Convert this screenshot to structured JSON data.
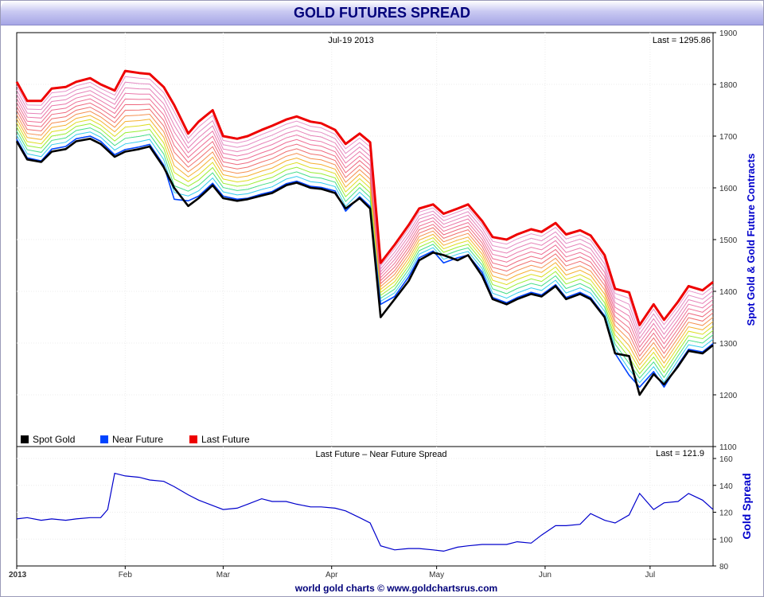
{
  "title": "GOLD FUTURES SPREAD",
  "footer": "world gold charts © www.goldchartsrus.com",
  "colors": {
    "spot": "#000000",
    "near": "#0044ff",
    "last": "#ee0000",
    "spread": "#0000cc",
    "accent": "#0000cc"
  },
  "chart_data": [
    {
      "type": "line",
      "header_date": "Jul-19  2013",
      "header_last": "Last = 1295.86",
      "ylabel": "Spot Gold & Gold Future Contracts",
      "ylim": [
        1100,
        1900
      ],
      "yticks": [
        1100,
        1200,
        1300,
        1400,
        1500,
        1600,
        1700,
        1800,
        1900
      ],
      "xlim": [
        "2013-01-01",
        "2013-07-19"
      ],
      "xticks": [
        {
          "label": "2013",
          "date": "2013-01-01"
        },
        {
          "label": "Feb",
          "date": "2013-02-01"
        },
        {
          "label": "Mar",
          "date": "2013-03-01"
        },
        {
          "label": "Apr",
          "date": "2013-04-01"
        },
        {
          "label": "May",
          "date": "2013-05-01"
        },
        {
          "label": "Jun",
          "date": "2013-06-01"
        },
        {
          "label": "Jul",
          "date": "2013-07-01"
        }
      ],
      "grid": true,
      "legend_position": "bottom-left",
      "legend": [
        {
          "label": "Spot Gold",
          "color": "#000000"
        },
        {
          "label": "Near Future",
          "color": "#0044ff"
        },
        {
          "label": "Last Future",
          "color": "#ee0000"
        }
      ],
      "series": [
        {
          "name": "Spot Gold",
          "color": "#000000",
          "x": [
            "2013-01-01",
            "2013-01-04",
            "2013-01-08",
            "2013-01-11",
            "2013-01-15",
            "2013-01-18",
            "2013-01-22",
            "2013-01-25",
            "2013-01-29",
            "2013-02-01",
            "2013-02-05",
            "2013-02-08",
            "2013-02-12",
            "2013-02-15",
            "2013-02-19",
            "2013-02-22",
            "2013-02-26",
            "2013-03-01",
            "2013-03-05",
            "2013-03-08",
            "2013-03-12",
            "2013-03-15",
            "2013-03-19",
            "2013-03-22",
            "2013-03-26",
            "2013-03-29",
            "2013-04-02",
            "2013-04-05",
            "2013-04-09",
            "2013-04-12",
            "2013-04-15",
            "2013-04-19",
            "2013-04-23",
            "2013-04-26",
            "2013-04-30",
            "2013-05-03",
            "2013-05-07",
            "2013-05-10",
            "2013-05-14",
            "2013-05-17",
            "2013-05-21",
            "2013-05-24",
            "2013-05-28",
            "2013-05-31",
            "2013-06-04",
            "2013-06-07",
            "2013-06-11",
            "2013-06-14",
            "2013-06-18",
            "2013-06-21",
            "2013-06-25",
            "2013-06-28",
            "2013-07-02",
            "2013-07-05",
            "2013-07-09",
            "2013-07-12",
            "2013-07-16",
            "2013-07-19"
          ],
          "values": [
            1690,
            1655,
            1650,
            1670,
            1675,
            1690,
            1695,
            1685,
            1660,
            1670,
            1675,
            1680,
            1640,
            1600,
            1565,
            1580,
            1605,
            1580,
            1575,
            1578,
            1585,
            1590,
            1605,
            1610,
            1600,
            1598,
            1590,
            1560,
            1580,
            1560,
            1350,
            1385,
            1420,
            1460,
            1475,
            1470,
            1460,
            1470,
            1430,
            1385,
            1375,
            1385,
            1395,
            1390,
            1410,
            1385,
            1395,
            1385,
            1350,
            1280,
            1275,
            1200,
            1240,
            1220,
            1255,
            1285,
            1280,
            1296
          ]
        },
        {
          "name": "Near Future",
          "color": "#0044ff",
          "x": [
            "2013-01-01",
            "2013-01-04",
            "2013-01-08",
            "2013-01-11",
            "2013-01-15",
            "2013-01-18",
            "2013-01-22",
            "2013-01-25",
            "2013-01-29",
            "2013-02-01",
            "2013-02-05",
            "2013-02-08",
            "2013-02-12",
            "2013-02-15",
            "2013-02-19",
            "2013-02-22",
            "2013-02-26",
            "2013-03-01",
            "2013-03-05",
            "2013-03-08",
            "2013-03-12",
            "2013-03-15",
            "2013-03-19",
            "2013-03-22",
            "2013-03-26",
            "2013-03-29",
            "2013-04-02",
            "2013-04-05",
            "2013-04-09",
            "2013-04-12",
            "2013-04-15",
            "2013-04-19",
            "2013-04-23",
            "2013-04-26",
            "2013-04-30",
            "2013-05-03",
            "2013-05-07",
            "2013-05-10",
            "2013-05-14",
            "2013-05-17",
            "2013-05-21",
            "2013-05-24",
            "2013-05-28",
            "2013-05-31",
            "2013-06-04",
            "2013-06-07",
            "2013-06-11",
            "2013-06-14",
            "2013-06-18",
            "2013-06-21",
            "2013-06-25",
            "2013-06-28",
            "2013-07-02",
            "2013-07-05",
            "2013-07-09",
            "2013-07-12",
            "2013-07-16",
            "2013-07-19"
          ],
          "values": [
            1694,
            1658,
            1652,
            1675,
            1680,
            1695,
            1700,
            1690,
            1664,
            1674,
            1679,
            1684,
            1644,
            1578,
            1575,
            1584,
            1609,
            1584,
            1578,
            1580,
            1588,
            1593,
            1608,
            1613,
            1603,
            1601,
            1594,
            1555,
            1583,
            1564,
            1375,
            1390,
            1428,
            1465,
            1478,
            1455,
            1465,
            1470,
            1437,
            1388,
            1378,
            1388,
            1398,
            1393,
            1413,
            1388,
            1398,
            1388,
            1353,
            1280,
            1238,
            1215,
            1245,
            1215,
            1258,
            1288,
            1283,
            1299
          ]
        },
        {
          "name": "Last Future",
          "color": "#ee0000",
          "x": [
            "2013-01-01",
            "2013-01-04",
            "2013-01-08",
            "2013-01-11",
            "2013-01-15",
            "2013-01-18",
            "2013-01-22",
            "2013-01-25",
            "2013-01-29",
            "2013-02-01",
            "2013-02-05",
            "2013-02-08",
            "2013-02-12",
            "2013-02-15",
            "2013-02-19",
            "2013-02-22",
            "2013-02-26",
            "2013-03-01",
            "2013-03-05",
            "2013-03-08",
            "2013-03-12",
            "2013-03-15",
            "2013-03-19",
            "2013-03-22",
            "2013-03-26",
            "2013-03-29",
            "2013-04-02",
            "2013-04-05",
            "2013-04-09",
            "2013-04-12",
            "2013-04-15",
            "2013-04-19",
            "2013-04-23",
            "2013-04-26",
            "2013-04-30",
            "2013-05-03",
            "2013-05-07",
            "2013-05-10",
            "2013-05-14",
            "2013-05-17",
            "2013-05-21",
            "2013-05-24",
            "2013-05-28",
            "2013-05-31",
            "2013-06-04",
            "2013-06-07",
            "2013-06-11",
            "2013-06-14",
            "2013-06-18",
            "2013-06-21",
            "2013-06-25",
            "2013-06-28",
            "2013-07-02",
            "2013-07-05",
            "2013-07-09",
            "2013-07-12",
            "2013-07-16",
            "2013-07-19"
          ],
          "values": [
            1805,
            1768,
            1768,
            1792,
            1795,
            1805,
            1812,
            1800,
            1788,
            1826,
            1822,
            1820,
            1795,
            1760,
            1705,
            1728,
            1750,
            1700,
            1695,
            1700,
            1712,
            1720,
            1732,
            1738,
            1728,
            1725,
            1712,
            1685,
            1705,
            1688,
            1455,
            1490,
            1528,
            1560,
            1568,
            1550,
            1560,
            1568,
            1536,
            1505,
            1500,
            1510,
            1520,
            1515,
            1532,
            1510,
            1518,
            1508,
            1470,
            1405,
            1398,
            1335,
            1375,
            1345,
            1380,
            1410,
            1402,
            1418
          ]
        }
      ]
    },
    {
      "type": "line",
      "title": "Last Future – Near Future Spread",
      "header_last": "Last = 121.9",
      "ylabel": "Gold Spread",
      "ylim": [
        80,
        160
      ],
      "yticks": [
        80,
        100,
        120,
        140,
        160
      ],
      "xlim": [
        "2013-01-01",
        "2013-07-19"
      ],
      "grid": true,
      "series": [
        {
          "name": "Last Future – Near Future Spread",
          "color": "#0000cc",
          "x": [
            "2013-01-01",
            "2013-01-04",
            "2013-01-08",
            "2013-01-11",
            "2013-01-15",
            "2013-01-18",
            "2013-01-22",
            "2013-01-25",
            "2013-01-27",
            "2013-01-29",
            "2013-02-01",
            "2013-02-05",
            "2013-02-08",
            "2013-02-12",
            "2013-02-15",
            "2013-02-19",
            "2013-02-22",
            "2013-02-26",
            "2013-03-01",
            "2013-03-05",
            "2013-03-08",
            "2013-03-12",
            "2013-03-15",
            "2013-03-19",
            "2013-03-22",
            "2013-03-26",
            "2013-03-29",
            "2013-04-02",
            "2013-04-05",
            "2013-04-09",
            "2013-04-12",
            "2013-04-15",
            "2013-04-19",
            "2013-04-23",
            "2013-04-26",
            "2013-04-30",
            "2013-05-03",
            "2013-05-07",
            "2013-05-10",
            "2013-05-14",
            "2013-05-17",
            "2013-05-21",
            "2013-05-24",
            "2013-05-28",
            "2013-05-31",
            "2013-06-04",
            "2013-06-07",
            "2013-06-11",
            "2013-06-14",
            "2013-06-18",
            "2013-06-21",
            "2013-06-25",
            "2013-06-28",
            "2013-07-02",
            "2013-07-05",
            "2013-07-09",
            "2013-07-12",
            "2013-07-16",
            "2013-07-19"
          ],
          "values": [
            115,
            116,
            114,
            115,
            114,
            115,
            116,
            116,
            122,
            149,
            147,
            146,
            144,
            143,
            139,
            133,
            129,
            125,
            122,
            123,
            126,
            130,
            128,
            128,
            126,
            124,
            124,
            123,
            121,
            116,
            112,
            95,
            92,
            93,
            93,
            92,
            91,
            94,
            95,
            96,
            96,
            96,
            98,
            97,
            103,
            110,
            110,
            111,
            119,
            114,
            112,
            118,
            134,
            122,
            127,
            128,
            134,
            129,
            122
          ]
        }
      ]
    }
  ]
}
